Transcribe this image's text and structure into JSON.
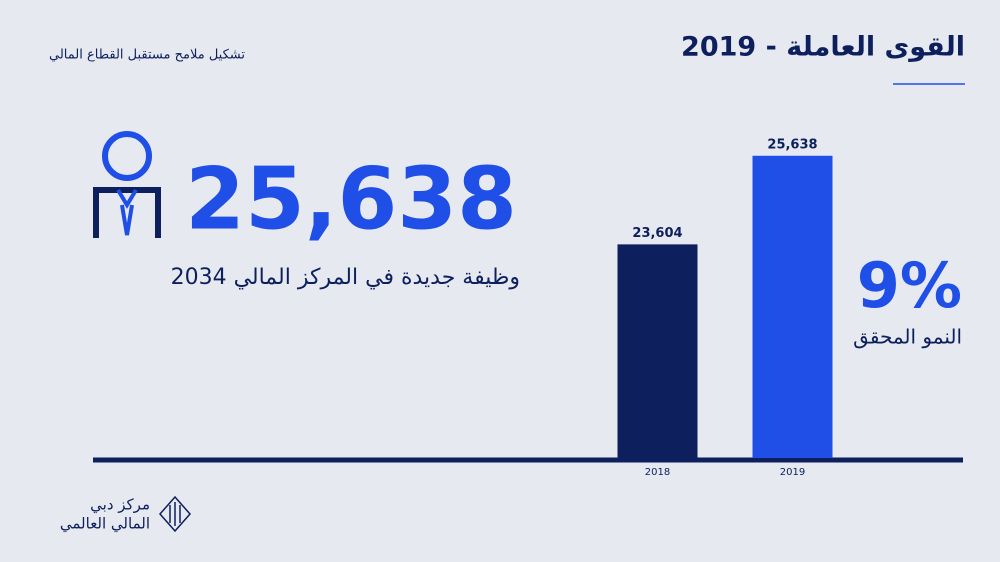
{
  "header": {
    "title": "2019 - القوى العاملة",
    "subtitle": "تشكيل ملامح مستقبل القطاع المالي"
  },
  "headline": {
    "value": "25,638",
    "caption": "2034 وظيفة جديدة في المركز المالي"
  },
  "growth": {
    "value": "9%",
    "caption": "النمو المحقق"
  },
  "logo": {
    "line1": "مركز دبي",
    "line2": "المالي العالمي"
  },
  "chart_data": {
    "type": "bar",
    "categories": [
      "2018",
      "2019"
    ],
    "values": [
      23604,
      25638
    ],
    "value_labels": [
      "23,604",
      "25,638"
    ],
    "colors": [
      "#0d1f5c",
      "#1f4fe6"
    ],
    "ylim": [
      18700,
      26000
    ]
  }
}
